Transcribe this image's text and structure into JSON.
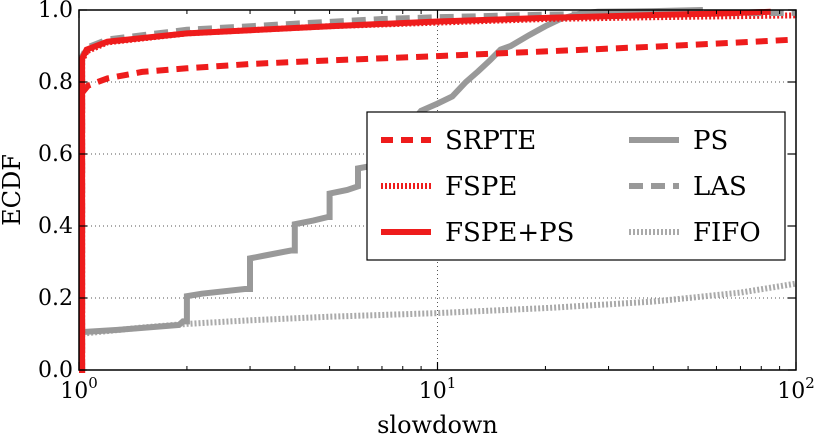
{
  "chart_data": {
    "type": "line",
    "xlabel": "slowdown",
    "ylabel": "ECDF",
    "xscale": "log",
    "xlim": [
      1,
      100
    ],
    "ylim": [
      0,
      1
    ],
    "grid": true,
    "legend_position": "center-right",
    "x_ticks": [
      {
        "value": 1,
        "base": "10",
        "exp": "0"
      },
      {
        "value": 10,
        "base": "10",
        "exp": "1"
      },
      {
        "value": 100,
        "base": "10",
        "exp": "2"
      }
    ],
    "y_ticks": [
      {
        "value": 0,
        "label": "0.0"
      },
      {
        "value": 0.2,
        "label": "0.2"
      },
      {
        "value": 0.4,
        "label": "0.4"
      },
      {
        "value": 0.6,
        "label": "0.6"
      },
      {
        "value": 0.8,
        "label": "0.8"
      },
      {
        "value": 1,
        "label": "1.0"
      }
    ],
    "series": [
      {
        "name": "SRPTE",
        "color": "#ee1c1c",
        "dash": "12,8",
        "width": 6,
        "points": [
          [
            1,
            0
          ],
          [
            1.02,
            0
          ],
          [
            1.02,
            0.77
          ],
          [
            1.06,
            0.79
          ],
          [
            1.2,
            0.81
          ],
          [
            1.5,
            0.828
          ],
          [
            2,
            0.838
          ],
          [
            3,
            0.85
          ],
          [
            5,
            0.86
          ],
          [
            10,
            0.872
          ],
          [
            20,
            0.885
          ],
          [
            40,
            0.898
          ],
          [
            70,
            0.91
          ],
          [
            100,
            0.918
          ]
        ]
      },
      {
        "name": "FSPE",
        "color": "#ee1c1c",
        "dash": "2,2",
        "width": 6,
        "points": [
          [
            1,
            0
          ],
          [
            1.02,
            0
          ],
          [
            1.02,
            0.86
          ],
          [
            1.05,
            0.885
          ],
          [
            1.2,
            0.91
          ],
          [
            2,
            0.935
          ],
          [
            5,
            0.955
          ],
          [
            10,
            0.965
          ],
          [
            20,
            0.975
          ],
          [
            40,
            0.98
          ],
          [
            70,
            0.983
          ],
          [
            100,
            0.985
          ]
        ]
      },
      {
        "name": "FSPE+PS",
        "color": "#ee1c1c",
        "dash": "",
        "width": 6,
        "points": [
          [
            1,
            0
          ],
          [
            1.02,
            0
          ],
          [
            1.02,
            0.865
          ],
          [
            1.05,
            0.89
          ],
          [
            1.2,
            0.912
          ],
          [
            2,
            0.935
          ],
          [
            5,
            0.955
          ],
          [
            10,
            0.968
          ],
          [
            20,
            0.978
          ],
          [
            40,
            0.986
          ],
          [
            60,
            0.99
          ],
          [
            85,
            0.995
          ]
        ]
      },
      {
        "name": "PS",
        "color": "#999999",
        "dash": "",
        "width": 6,
        "points": [
          [
            1,
            0.105
          ],
          [
            1.3,
            0.112
          ],
          [
            1.9,
            0.125
          ],
          [
            1.95,
            0.135
          ],
          [
            2,
            0.135
          ],
          [
            2,
            0.205
          ],
          [
            2.2,
            0.212
          ],
          [
            2.9,
            0.225
          ],
          [
            3,
            0.225
          ],
          [
            3,
            0.31
          ],
          [
            3.3,
            0.318
          ],
          [
            3.9,
            0.332
          ],
          [
            4,
            0.332
          ],
          [
            4,
            0.405
          ],
          [
            4.5,
            0.415
          ],
          [
            4.95,
            0.425
          ],
          [
            5,
            0.425
          ],
          [
            5,
            0.49
          ],
          [
            5.6,
            0.5
          ],
          [
            6,
            0.51
          ],
          [
            6,
            0.56
          ],
          [
            6.8,
            0.57
          ],
          [
            7,
            0.58
          ],
          [
            7,
            0.62
          ],
          [
            7.5,
            0.64
          ],
          [
            8,
            0.655
          ],
          [
            8.5,
            0.69
          ],
          [
            9,
            0.72
          ],
          [
            10,
            0.74
          ],
          [
            11,
            0.76
          ],
          [
            12,
            0.8
          ],
          [
            13,
            0.83
          ],
          [
            14,
            0.86
          ],
          [
            15,
            0.89
          ],
          [
            16,
            0.9
          ],
          [
            18,
            0.93
          ],
          [
            20,
            0.955
          ],
          [
            22,
            0.975
          ],
          [
            25,
            0.99
          ],
          [
            28,
            0.995
          ],
          [
            40,
            0.997
          ],
          [
            55,
            1.0
          ]
        ]
      },
      {
        "name": "LAS",
        "color": "#999999",
        "dash": "14,8",
        "width": 6,
        "points": [
          [
            1,
            0
          ],
          [
            1.02,
            0
          ],
          [
            1.02,
            0.87
          ],
          [
            1.05,
            0.895
          ],
          [
            1.2,
            0.918
          ],
          [
            2,
            0.945
          ],
          [
            4,
            0.962
          ],
          [
            7,
            0.975
          ],
          [
            10,
            0.98
          ],
          [
            20,
            0.987
          ],
          [
            40,
            0.99
          ],
          [
            100,
            0.992
          ]
        ]
      },
      {
        "name": "FIFO",
        "color": "#aaaaaa",
        "dash": "2,2",
        "width": 6,
        "points": [
          [
            1,
            0.1
          ],
          [
            1.5,
            0.118
          ],
          [
            2,
            0.128
          ],
          [
            3,
            0.138
          ],
          [
            5,
            0.148
          ],
          [
            10,
            0.158
          ],
          [
            20,
            0.172
          ],
          [
            40,
            0.19
          ],
          [
            70,
            0.215
          ],
          [
            100,
            0.24
          ]
        ]
      }
    ],
    "legend": {
      "entries": [
        {
          "label": "SRPTE"
        },
        {
          "label": "FSPE"
        },
        {
          "label": "FSPE+PS"
        },
        {
          "label": "PS"
        },
        {
          "label": "LAS"
        },
        {
          "label": "FIFO"
        }
      ]
    }
  }
}
